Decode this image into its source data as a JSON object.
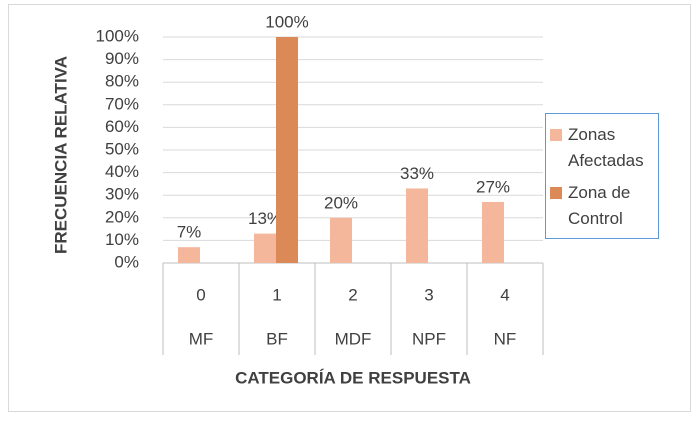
{
  "chart_data": {
    "type": "bar",
    "ylabel": "FRECUENCIA RELATIVA",
    "xlabel": "CATEGORÍA DE RESPUESTA",
    "categories": [
      "0",
      "1",
      "2",
      "3",
      "4"
    ],
    "subcategories": [
      "MF",
      "BF",
      "MDF",
      "NPF",
      "NF"
    ],
    "series": [
      {
        "name": "Zonas Afectadas",
        "color": "#f4b79c",
        "values": [
          7,
          13,
          20,
          33,
          27
        ],
        "value_labels": [
          "7%",
          "13%",
          "20%",
          "33%",
          "27%"
        ]
      },
      {
        "name": "Zona de Control",
        "color": "#db8a57",
        "values": [
          null,
          100,
          null,
          null,
          null
        ],
        "value_labels": [
          null,
          "100%",
          null,
          null,
          null
        ]
      }
    ],
    "ylim": [
      0,
      100
    ],
    "yticks": [
      {
        "value": 0,
        "label": "0%"
      },
      {
        "value": 10,
        "label": "10%"
      },
      {
        "value": 20,
        "label": "20%"
      },
      {
        "value": 30,
        "label": "30%"
      },
      {
        "value": 40,
        "label": "40%"
      },
      {
        "value": 50,
        "label": "50%"
      },
      {
        "value": 60,
        "label": "60%"
      },
      {
        "value": 70,
        "label": "70%"
      },
      {
        "value": 80,
        "label": "80%"
      },
      {
        "value": 90,
        "label": "90%"
      },
      {
        "value": 100,
        "label": "100%"
      }
    ],
    "grid": true,
    "legend": "right"
  }
}
